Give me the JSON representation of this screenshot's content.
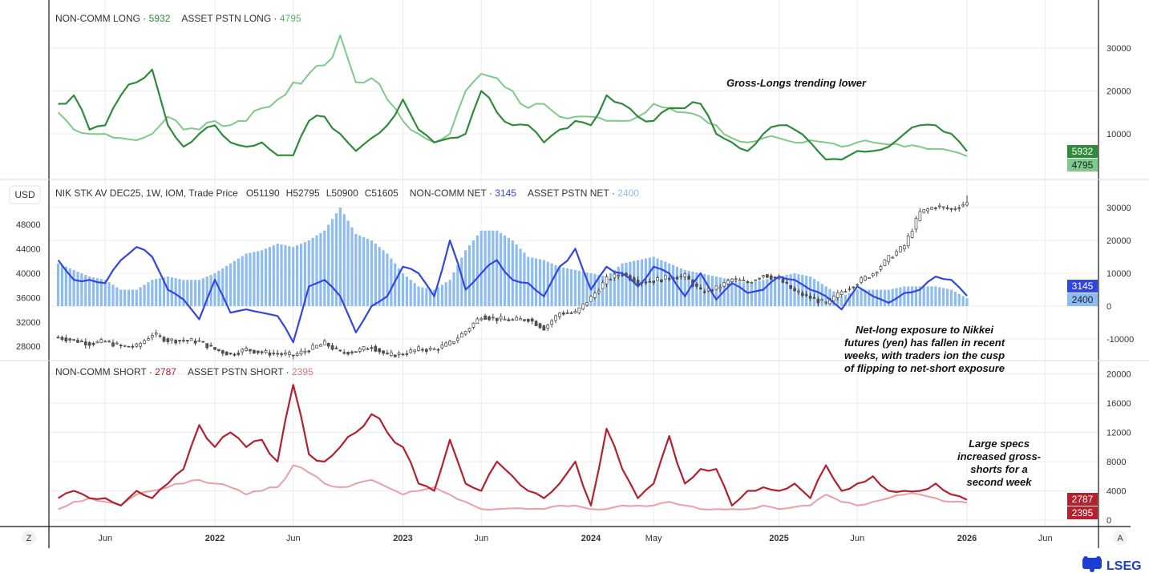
{
  "chart_data": [
    {
      "type": "line",
      "panel": "top",
      "legend": [
        {
          "name": "NON-COMM LONG",
          "last": "5932",
          "color": "#2e8b3a"
        },
        {
          "name": "ASSET PSTN LONG",
          "last": "4795",
          "color": "#7fc98a"
        }
      ],
      "annotation": "Gross-Longs trending lower",
      "ylim": [
        0,
        40000
      ],
      "yticks": [
        10000,
        20000,
        30000
      ],
      "x": [
        "2021-03",
        "2021-04",
        "2021-05",
        "2021-06",
        "2021-07",
        "2021-08",
        "2021-09",
        "2021-10",
        "2021-11",
        "2021-12",
        "2022-01",
        "2022-02",
        "2022-03",
        "2022-04",
        "2022-05",
        "2022-06",
        "2022-07",
        "2022-08",
        "2022-09",
        "2022-10",
        "2022-11",
        "2022-12",
        "2023-01",
        "2023-02",
        "2023-03",
        "2023-04",
        "2023-05",
        "2023-06",
        "2023-07",
        "2023-08",
        "2023-09",
        "2023-10",
        "2023-11",
        "2023-12",
        "2024-01",
        "2024-02",
        "2024-03",
        "2024-04",
        "2024-05",
        "2024-06",
        "2024-07",
        "2024-08",
        "2024-09",
        "2024-10",
        "2024-11",
        "2024-12",
        "2025-01",
        "2025-02",
        "2025-03",
        "2025-04",
        "2025-05",
        "2025-06",
        "2025-07",
        "2025-08",
        "2025-09",
        "2025-10",
        "2025-11",
        "2025-12",
        "2026-01"
      ],
      "series": [
        {
          "name": "NON-COMM LONG",
          "values": [
            17000,
            19000,
            11000,
            12000,
            19000,
            22000,
            25000,
            12000,
            7000,
            10000,
            12000,
            8000,
            7000,
            8000,
            5000,
            5000,
            13000,
            14000,
            10000,
            6000,
            9000,
            12000,
            18000,
            11000,
            8000,
            9000,
            10000,
            20000,
            15000,
            12000,
            12000,
            8000,
            11000,
            13000,
            12000,
            19000,
            17000,
            14000,
            13000,
            16000,
            16000,
            17000,
            10000,
            8000,
            6000,
            10000,
            12000,
            11000,
            8000,
            4000,
            4000,
            6000,
            6000,
            7000,
            10000,
            12000,
            12000,
            10000,
            5932
          ]
        },
        {
          "name": "ASSET PSTN LONG",
          "values": [
            15000,
            11000,
            10000,
            10000,
            9000,
            8500,
            10000,
            14000,
            11000,
            11000,
            13000,
            12000,
            13000,
            16000,
            18000,
            22000,
            24000,
            26000,
            33000,
            22000,
            23000,
            18000,
            13000,
            10000,
            8000,
            10000,
            20000,
            24000,
            23000,
            20000,
            16000,
            17000,
            14000,
            14000,
            14000,
            13000,
            13000,
            14000,
            17000,
            16000,
            15000,
            14000,
            12000,
            9000,
            8000,
            9000,
            9000,
            8000,
            8500,
            8000,
            7000,
            8000,
            8000,
            7500,
            7000,
            7000,
            6500,
            6000,
            4795
          ]
        }
      ]
    },
    {
      "type": "candlestick+bar+line",
      "panel": "middle",
      "instrument": "NIK STK AV DEC25, 1W, IOM, Trade Price",
      "ohlc_last": {
        "O": "O51190",
        "H": "H52795",
        "L": "L50900",
        "C": "C51605"
      },
      "currency": "USD",
      "legend": [
        {
          "name": "NON-COMM NET",
          "last": "3145",
          "color": "#3346e0"
        },
        {
          "name": "ASSET PSTN NET",
          "last": "2400",
          "color": "#8dbcf0"
        }
      ],
      "annotation": [
        "Net-long exposure to Nikkei",
        "futures (yen) has fallen in recent",
        "weeks, with traders ion the cusp",
        "of flipping to net-short exposure"
      ],
      "ylim_right": [
        -15000,
        36000
      ],
      "yticks_right": [
        -10000,
        0,
        10000,
        20000,
        30000
      ],
      "ylim_left": [
        25000,
        54000
      ],
      "yticks_left": [
        28000,
        32000,
        36000,
        40000,
        44000,
        48000
      ],
      "price_close": [
        29500,
        29000,
        28500,
        28800,
        28000,
        28000,
        30000,
        29000,
        29000,
        28800,
        27500,
        26700,
        27500,
        27000,
        26800,
        26500,
        27500,
        28500,
        27000,
        27200,
        28000,
        26500,
        26800,
        27500,
        27500,
        28500,
        30500,
        33000,
        32500,
        32300,
        32500,
        31000,
        33500,
        33500,
        36000,
        39000,
        40000,
        38500,
        38800,
        39300,
        39500,
        37000,
        37500,
        39000,
        38500,
        39800,
        39000,
        37000,
        36000,
        35000,
        37000,
        38500,
        40000,
        42500,
        44500,
        50000,
        51000,
        50500,
        51605
      ],
      "series": [
        {
          "name": "NON-COMM NET",
          "values": [
            14000,
            8000,
            8000,
            7000,
            14000,
            18000,
            15000,
            5000,
            2000,
            -4000,
            8000,
            -2000,
            -1000,
            -2000,
            -3000,
            -11000,
            6000,
            8000,
            3000,
            -8000,
            0,
            3000,
            12000,
            10000,
            3000,
            20000,
            5000,
            10000,
            14000,
            8000,
            7000,
            3000,
            12000,
            17500,
            5000,
            12000,
            10000,
            6000,
            12000,
            10000,
            3000,
            10000,
            2000,
            7000,
            4000,
            5000,
            9000,
            8000,
            5000,
            3000,
            -1000,
            6000,
            3000,
            1000,
            4000,
            5000,
            9000,
            8000,
            3145
          ]
        },
        {
          "name": "ASSET PSTN NET",
          "values": [
            13000,
            11000,
            9000,
            8000,
            5000,
            5000,
            8000,
            9000,
            8000,
            8000,
            10000,
            13000,
            16000,
            17000,
            19000,
            18000,
            20000,
            23000,
            30000,
            22000,
            20000,
            16000,
            10000,
            6000,
            5000,
            8000,
            17000,
            23000,
            23000,
            20000,
            15000,
            14000,
            12000,
            11000,
            10000,
            9000,
            13000,
            14000,
            15000,
            13000,
            11000,
            10000,
            9000,
            8000,
            7000,
            8000,
            9000,
            10000,
            9000,
            6000,
            3000,
            5000,
            5000,
            5000,
            6000,
            6000,
            6000,
            5000,
            2400
          ]
        }
      ]
    },
    {
      "type": "line",
      "panel": "bottom",
      "legend": [
        {
          "name": "NON-COMM SHORT",
          "last": "2787",
          "color": "#b3202e"
        },
        {
          "name": "ASSET PSTN SHORT",
          "last": "2395",
          "color": "#e8a0a4"
        }
      ],
      "annotation": [
        "Large specs",
        "increased gross-",
        "shorts for a",
        "second week"
      ],
      "ylim": [
        0,
        21000
      ],
      "yticks": [
        0,
        4000,
        8000,
        12000,
        16000,
        20000
      ],
      "series": [
        {
          "name": "NON-COMM SHORT",
          "values": [
            3000,
            4000,
            3000,
            3000,
            2000,
            4000,
            3000,
            5000,
            7000,
            13000,
            10000,
            12000,
            10000,
            11000,
            8000,
            18500,
            9000,
            8000,
            10000,
            12000,
            14500,
            12000,
            10000,
            5000,
            4000,
            11000,
            5000,
            4000,
            8000,
            6000,
            4000,
            3000,
            5000,
            8000,
            2000,
            12500,
            7000,
            3000,
            5000,
            11500,
            5000,
            7000,
            7000,
            2000,
            4000,
            4500,
            4000,
            5000,
            3000,
            7500,
            4000,
            5000,
            6000,
            4000,
            4000,
            4000,
            5000,
            3500,
            2787
          ]
        },
        {
          "name": "ASSET PSTN SHORT",
          "values": [
            1500,
            2500,
            3000,
            2500,
            2000,
            3500,
            4000,
            4500,
            5000,
            5500,
            5000,
            4500,
            3500,
            4000,
            4500,
            7500,
            6500,
            5000,
            4500,
            5000,
            5500,
            4500,
            3500,
            4000,
            4500,
            3500,
            2500,
            1500,
            1500,
            1600,
            1500,
            1500,
            2000,
            2000,
            1500,
            1500,
            2000,
            2000,
            2000,
            2500,
            2000,
            1500,
            1500,
            1500,
            1500,
            2000,
            1500,
            1800,
            2000,
            3500,
            2500,
            2000,
            2500,
            3000,
            3500,
            3500,
            3000,
            2500,
            2395
          ]
        }
      ]
    }
  ],
  "x_axis": {
    "labels": [
      {
        "text": "Jun",
        "date": "2021-06"
      },
      {
        "text": "2022",
        "date": "2022-01",
        "bold": true
      },
      {
        "text": "Jun",
        "date": "2022-06"
      },
      {
        "text": "2023",
        "date": "2023-01",
        "bold": true
      },
      {
        "text": "Jun",
        "date": "2023-06"
      },
      {
        "text": "2024",
        "date": "2024-01",
        "bold": true
      },
      {
        "text": "May",
        "date": "2024-05"
      },
      {
        "text": "2025",
        "date": "2025-01",
        "bold": true
      },
      {
        "text": "Jun",
        "date": "2025-06"
      },
      {
        "text": "2026",
        "date": "2026-01",
        "bold": true
      },
      {
        "text": "Jun",
        "date": "2026-06"
      }
    ],
    "zoom_button": "Z",
    "auto_button": "A"
  },
  "brand": "LSEG",
  "candle_colors": {
    "up": "#ffffff",
    "down": "#555555",
    "wick": "#444444"
  }
}
